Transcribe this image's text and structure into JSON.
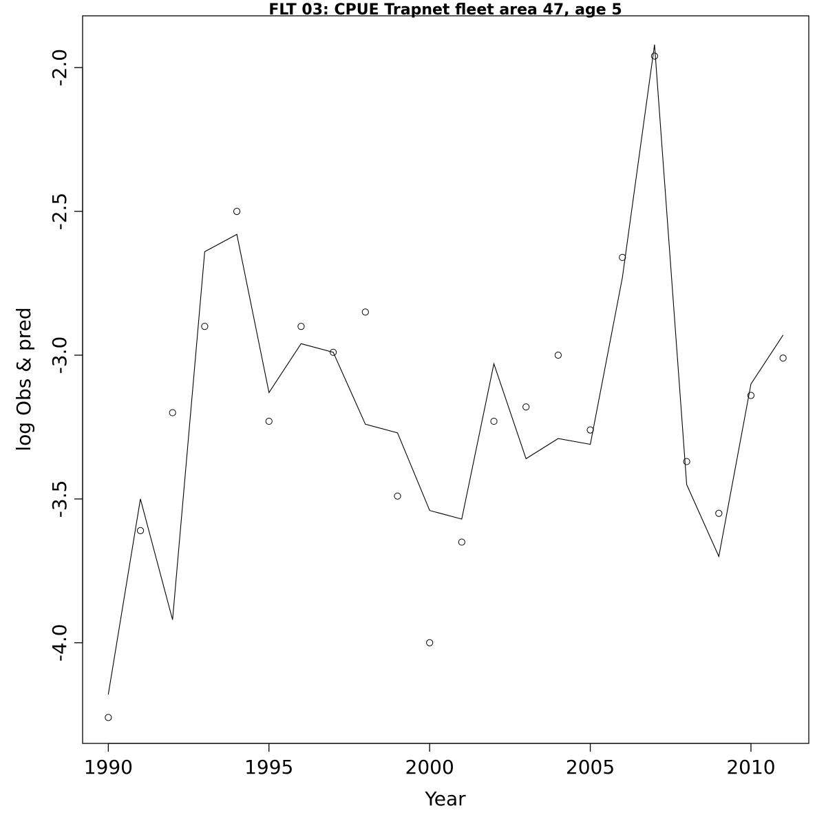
{
  "chart_data": {
    "type": "line",
    "title": "FLT 03: CPUE Trapnet fleet area 47, age 5",
    "xlabel": "Year",
    "ylabel": "log Obs & pred",
    "xlim": [
      1989.2,
      2011.8
    ],
    "ylim": [
      -4.35,
      -1.82
    ],
    "xticks": [
      1990,
      1995,
      2000,
      2005,
      2010
    ],
    "yticks": [
      -4.0,
      -3.5,
      -3.0,
      -2.5,
      -2.0
    ],
    "ytick_labels": [
      "-4.0",
      "-3.5",
      "-3.0",
      "-2.5",
      "-2.0"
    ],
    "grid": false,
    "series": [
      {
        "style": "points",
        "x": [
          1990,
          1991,
          1992,
          1993,
          1994,
          1995,
          1996,
          1997,
          1998,
          1999,
          2000,
          2001,
          2002,
          2003,
          2004,
          2005,
          2006,
          2007,
          2008,
          2009,
          2010,
          2011
        ],
        "values": [
          -4.26,
          -3.61,
          -3.2,
          -2.9,
          -2.5,
          -3.23,
          -2.9,
          -2.99,
          -2.85,
          -3.49,
          -4.0,
          -3.65,
          -3.23,
          -3.18,
          -3.0,
          -3.26,
          -2.66,
          -1.96,
          -3.37,
          -3.55,
          -3.14,
          -3.01
        ]
      },
      {
        "style": "line",
        "x": [
          1990,
          1991,
          1992,
          1993,
          1994,
          1995,
          1996,
          1997,
          1998,
          1999,
          2000,
          2001,
          2002,
          2003,
          2004,
          2005,
          2006,
          2007,
          2008,
          2009,
          2010,
          2011
        ],
        "values": [
          -4.18,
          -3.5,
          -3.92,
          -2.64,
          -2.58,
          -3.13,
          -2.96,
          -2.99,
          -3.24,
          -3.27,
          -3.54,
          -3.57,
          -3.03,
          -3.36,
          -3.29,
          -3.31,
          -2.73,
          -1.92,
          -3.45,
          -3.7,
          -3.1,
          -2.93
        ]
      }
    ]
  }
}
